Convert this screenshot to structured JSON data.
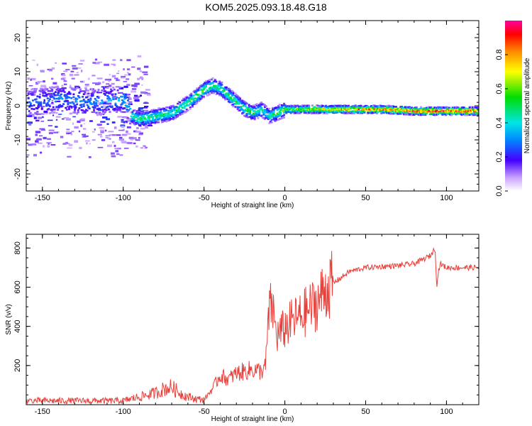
{
  "title": "KOM5.2025.093.18.48.G18",
  "chart_data": [
    {
      "type": "heatmap",
      "title": "",
      "xlabel": "Height of straight line (km)",
      "ylabel": "Frequency (Hz)",
      "xlim": [
        -160,
        120
      ],
      "ylim": [
        -25,
        25
      ],
      "xticks": [
        -150,
        -100,
        -50,
        0,
        50,
        100
      ],
      "yticks": [
        -20,
        -10,
        0,
        10,
        20
      ],
      "colorbar": {
        "label": "Normalized spectral amplitude",
        "range": [
          0,
          1
        ],
        "ticks": [
          0.0,
          0.2,
          0.4,
          0.6,
          0.8
        ],
        "tick_labels": [
          "0.0",
          "0.2",
          "0.4",
          "0.6",
          "0.8"
        ]
      },
      "ridge": {
        "name": "",
        "x": [
          -160,
          -140,
          -120,
          -100,
          -95,
          -90,
          -80,
          -70,
          -60,
          -50,
          -45,
          -40,
          -35,
          -30,
          -25,
          -20,
          -15,
          -10,
          -5,
          0,
          10,
          20,
          40,
          60,
          80,
          95,
          100,
          120
        ],
        "y": [
          1,
          2,
          1,
          2,
          -3,
          -4,
          -3,
          -2,
          1,
          5,
          6,
          5,
          3,
          1,
          -1,
          -2,
          -1,
          -3,
          -2,
          -1,
          -1,
          -1,
          -1,
          -1,
          -1.5,
          -1.5,
          -1.5,
          -1.5
        ],
        "amplitude": [
          0.2,
          0.25,
          0.25,
          0.3,
          0.4,
          0.5,
          0.45,
          0.45,
          0.5,
          0.55,
          0.5,
          0.45,
          0.5,
          0.45,
          0.5,
          0.45,
          0.4,
          0.4,
          0.5,
          0.55,
          0.6,
          0.7,
          0.8,
          0.85,
          0.9,
          0.95,
          0.95,
          0.95
        ]
      }
    },
    {
      "type": "line",
      "title": "",
      "xlabel": "Height of straight line (km)",
      "ylabel": "SNR (v/v)",
      "xlim": [
        -160,
        120
      ],
      "ylim": [
        0,
        870
      ],
      "xticks": [
        -150,
        -100,
        -50,
        0,
        50,
        100
      ],
      "yticks": [
        200,
        400,
        600,
        800
      ],
      "series": [
        {
          "name": "",
          "color": "#e8403a",
          "x": [
            -160,
            -140,
            -120,
            -100,
            -90,
            -80,
            -75,
            -70,
            -65,
            -60,
            -55,
            -50,
            -45,
            -40,
            -35,
            -30,
            -25,
            -20,
            -15,
            -12,
            -10,
            -8,
            -5,
            0,
            5,
            10,
            15,
            20,
            25,
            30,
            40,
            50,
            60,
            70,
            80,
            85,
            90,
            93,
            94,
            95,
            96,
            100,
            110,
            120
          ],
          "y": [
            20,
            20,
            20,
            20,
            40,
            60,
            80,
            90,
            60,
            40,
            30,
            25,
            80,
            150,
            130,
            160,
            170,
            180,
            170,
            190,
            450,
            520,
            350,
            390,
            430,
            450,
            490,
            520,
            590,
            620,
            680,
            700,
            705,
            710,
            720,
            740,
            760,
            800,
            600,
            680,
            720,
            700,
            700,
            700
          ]
        }
      ]
    }
  ]
}
